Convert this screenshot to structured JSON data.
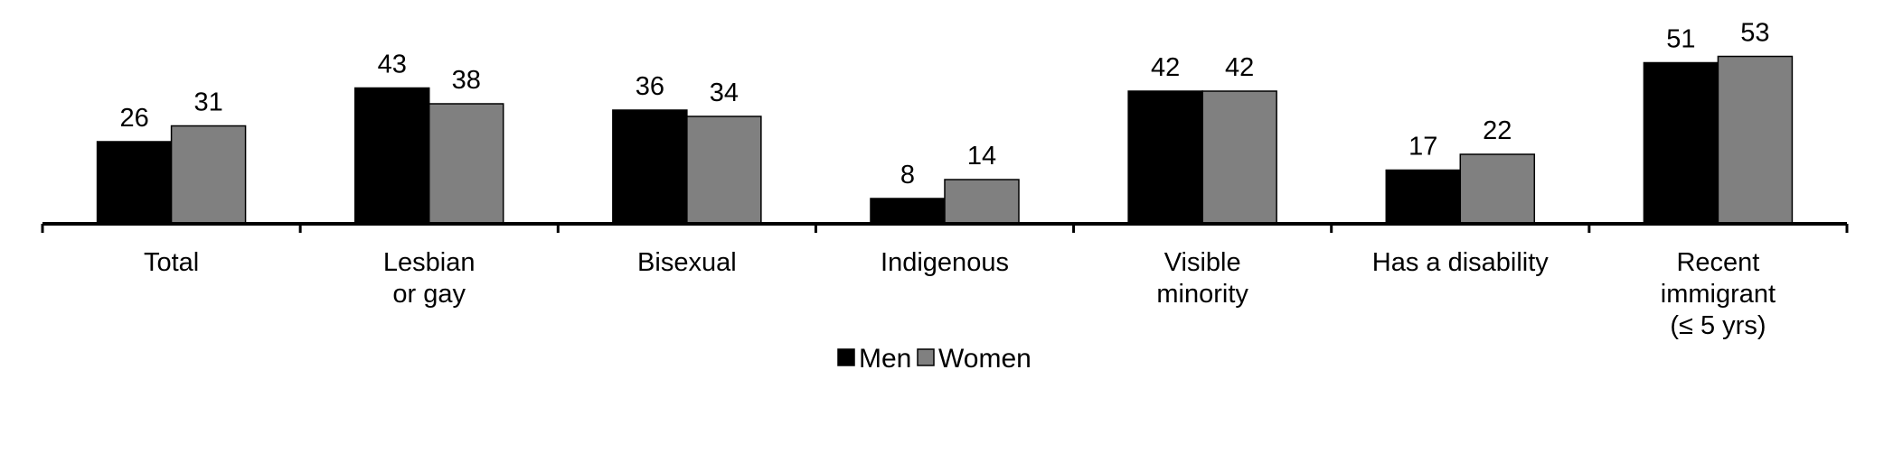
{
  "chart_data": {
    "type": "bar",
    "categories": [
      [
        "Total"
      ],
      [
        "Lesbian",
        "or gay"
      ],
      [
        "Bisexual"
      ],
      [
        "Indigenous"
      ],
      [
        "Visible",
        "minority"
      ],
      [
        "Has a disability"
      ],
      [
        "Recent",
        "immigrant",
        "(≤ 5 yrs)"
      ]
    ],
    "series": [
      {
        "name": "Men",
        "values": [
          26,
          43,
          36,
          8,
          42,
          17,
          51
        ],
        "color": "#000000"
      },
      {
        "name": "Women",
        "values": [
          31,
          38,
          34,
          14,
          42,
          22,
          53
        ],
        "color": "#808080"
      }
    ],
    "ylim": [
      0,
      60
    ],
    "grid": false,
    "legend": "bottom-center",
    "data_labels": true
  }
}
